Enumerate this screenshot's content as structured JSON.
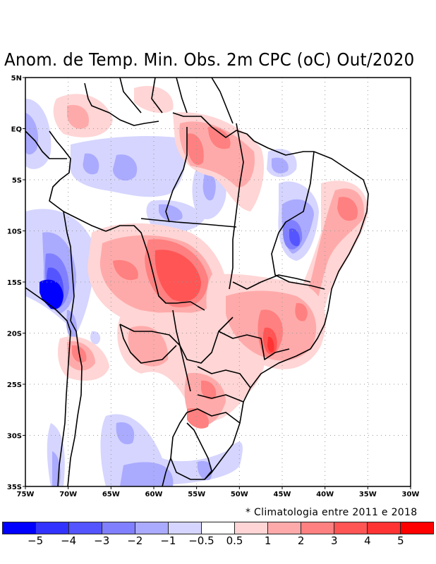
{
  "title": "Anom. de Temp. Min. Obs. 2m CPC (oC) Out/2020",
  "climatology_note": "* Climatologia entre 2011 e 2018",
  "map": {
    "region": "South America / Brazil",
    "lon_range": [
      -75,
      -30
    ],
    "lat_range": [
      -35,
      5
    ],
    "y_axis_labels": [
      "5N",
      "EQ",
      "5S",
      "10S",
      "15S",
      "20S",
      "25S",
      "30S",
      "35S"
    ],
    "x_axis_labels": [
      "75W",
      "70W",
      "65W",
      "60W",
      "55W",
      "50W",
      "45W",
      "40W",
      "35W",
      "30W"
    ],
    "grid": "dotted",
    "variable": "Minimum temperature anomaly at 2m (°C)"
  },
  "colorbar": {
    "colors": [
      "#0000ff",
      "#3333ff",
      "#5555ff",
      "#8080ff",
      "#aaaaff",
      "#d5d5ff",
      "#ffffff",
      "#ffd5d5",
      "#ffaaaa",
      "#ff8080",
      "#ff5555",
      "#ff3333",
      "#ff0000"
    ],
    "labels": [
      "-5",
      "-4",
      "-3",
      "-2",
      "-1",
      "-0.5",
      "0.5",
      "1",
      "2",
      "3",
      "4",
      "5"
    ]
  }
}
